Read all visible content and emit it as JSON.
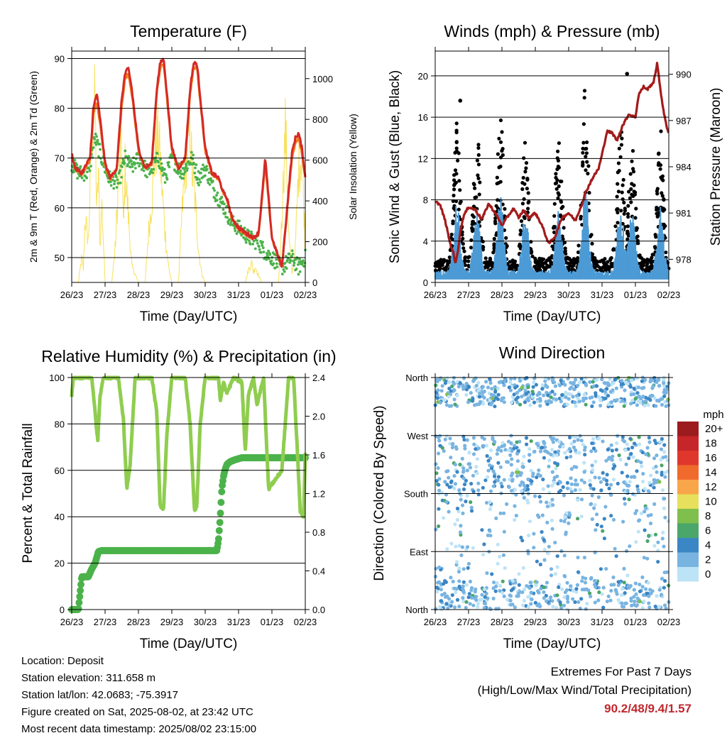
{
  "days": [
    "26/23",
    "27/23",
    "28/23",
    "29/23",
    "30/23",
    "31/23",
    "01/23",
    "02/23"
  ],
  "colors": {
    "t2m": "#d42a26",
    "t9m": "#f07d1f",
    "td": "#4bb24a",
    "solar": "#f8e05a",
    "sonic": "#4d9bd5",
    "gust": "#000000",
    "pressure": "#a31b1b",
    "rh": "#8fcd4f",
    "precip": "#4bb24a"
  },
  "charts": {
    "temperature": {
      "title": "Temperature (F)",
      "xlabel": "Time (Day/UTC)",
      "ylabel": "2m & 9m T (Red, Orange) & 2m Td (Green)",
      "y2label": "Solar Insolation (Yellow)"
    },
    "winds": {
      "title": "Winds (mph) & Pressure (mb)",
      "xlabel": "Time (Day/UTC)",
      "ylabel": "Sonic Wind & Gust (Blue, Black)",
      "y2label": "Station Pressure (Maroon)"
    },
    "rh": {
      "title": "Relative Humidity (%) & Precipitation (in)",
      "xlabel": "Time (Day/UTC)",
      "ylabel": "Percent & Total Rainfall"
    },
    "wdir": {
      "title": "Wind Direction",
      "xlabel": "Time (Day/UTC)",
      "ylabel": "Direction (Colored By Speed)",
      "legend_title": "mph"
    }
  },
  "chart_data": [
    {
      "type": "line",
      "title": "Temperature (F)",
      "xlabel": "Time (Day/UTC)",
      "ylabel": "2m & 9m T (Red, Orange) & 2m Td (Green)",
      "y2label": "Solar Insolation (Yellow)",
      "ylim": [
        45,
        91.5
      ],
      "y2lim": [
        0,
        1135
      ],
      "yticks": [
        50,
        60,
        70,
        80,
        90
      ],
      "y2ticks": [
        0,
        200,
        400,
        600,
        800,
        1000
      ],
      "xlim": [
        0,
        7
      ],
      "grid": true,
      "series": [
        {
          "x": [
            0,
            0.1,
            0.3,
            0.55,
            0.65,
            0.75,
            0.85,
            1.0,
            1.15,
            1.35,
            1.5,
            1.6,
            1.7,
            1.8,
            2.0,
            2.2,
            2.4,
            2.55,
            2.65,
            2.75,
            2.8,
            3.0,
            3.2,
            3.4,
            3.55,
            3.65,
            3.75,
            3.8,
            4.0,
            4.2,
            4.4,
            4.55,
            4.65,
            4.8,
            5.0,
            5.2,
            5.45,
            5.6,
            5.7,
            5.8,
            5.9,
            6.0,
            6.3,
            6.6,
            6.7,
            6.8,
            6.9,
            7.0
          ],
          "y": [
            71,
            68,
            67,
            70,
            80,
            83,
            78,
            69,
            66,
            68,
            82,
            87,
            88,
            84,
            72,
            68,
            69,
            84,
            89,
            90,
            87,
            72,
            68,
            70,
            84,
            89,
            89,
            86,
            72,
            67,
            66,
            63,
            62,
            58,
            56,
            55,
            54,
            55,
            62,
            70,
            62,
            54,
            48,
            71,
            74,
            75,
            72,
            66
          ]
        },
        {
          "x": [
            0,
            0.1,
            0.3,
            0.55,
            0.65,
            0.75,
            0.85,
            1.0,
            1.15,
            1.35,
            1.5,
            1.6,
            1.7,
            1.8,
            2.0,
            2.2,
            2.4,
            2.55,
            2.65,
            2.75,
            2.8,
            3.0,
            3.2,
            3.4,
            3.55,
            3.65,
            3.75,
            3.8,
            4.0,
            4.2,
            4.4,
            4.55,
            4.65,
            4.8,
            5.0,
            5.2,
            5.45,
            5.6,
            5.7,
            5.8,
            5.9,
            6.0,
            6.3,
            6.6,
            6.7,
            6.8,
            6.9,
            7.0
          ],
          "y": [
            70.5,
            67.8,
            66.8,
            69.5,
            79,
            81,
            77,
            68.5,
            65.8,
            67.8,
            80.5,
            86,
            87,
            83,
            71.5,
            67.8,
            68.8,
            83,
            88,
            89,
            86,
            71.5,
            67.8,
            69.8,
            83,
            88,
            88.5,
            85,
            71.5,
            66.8,
            65.8,
            62.8,
            61.8,
            57.8,
            55.8,
            54.8,
            53.8,
            54.8,
            61.5,
            69,
            61.5,
            53.8,
            48,
            70,
            73,
            74,
            71,
            66
          ]
        },
        {
          "x": [
            0,
            0.2,
            0.5,
            0.7,
            0.9,
            1.1,
            1.4,
            1.6,
            1.8,
            2.0,
            2.3,
            2.6,
            2.8,
            3.0,
            3.3,
            3.6,
            3.8,
            4.0,
            4.3,
            4.5,
            4.8,
            5.0,
            5.3,
            5.6,
            5.8,
            6.0,
            6.3,
            6.6,
            6.8,
            7.0
          ],
          "y": [
            69,
            67,
            67,
            74,
            70,
            66,
            65,
            70,
            68,
            70,
            67,
            70,
            66,
            70,
            67,
            70,
            66,
            68,
            63,
            61,
            57,
            56,
            54,
            53,
            51,
            50,
            48,
            50,
            48,
            50
          ]
        },
        {
          "x": [
            0.2,
            0.3,
            0.35,
            0.4,
            0.5,
            0.6,
            0.7,
            0.75,
            0.8,
            0.85,
            0.9,
            1.0,
            1.2,
            1.3,
            1.4,
            1.5,
            1.55,
            1.6,
            1.7,
            1.8,
            1.9,
            2.0,
            2.2,
            2.3,
            2.4,
            2.5,
            2.6,
            2.7,
            2.8,
            2.9,
            3.0,
            3.2,
            3.3,
            3.4,
            3.5,
            3.55,
            3.6,
            3.7,
            3.8,
            3.9,
            4.0,
            4.2,
            4.3,
            4.4,
            4.5,
            4.6,
            4.7,
            4.8,
            4.9,
            5.0,
            5.2,
            5.3,
            5.4,
            5.45,
            5.5,
            5.6,
            5.7,
            5.8,
            6.0,
            6.2,
            6.3,
            6.4,
            6.45,
            6.5,
            6.6,
            6.7,
            6.8,
            6.9,
            7.0
          ],
          "y": [
            0,
            150,
            80,
            400,
            250,
            900,
            1100,
            400,
            700,
            200,
            500,
            0,
            0,
            200,
            600,
            850,
            300,
            700,
            400,
            100,
            50,
            0,
            0,
            300,
            500,
            800,
            900,
            600,
            300,
            100,
            0,
            0,
            400,
            700,
            850,
            950,
            700,
            500,
            200,
            50,
            0,
            0,
            0,
            0,
            0,
            0,
            0,
            0,
            0,
            0,
            0,
            80,
            120,
            60,
            100,
            40,
            0,
            0,
            0,
            0,
            400,
            950,
            700,
            300,
            50,
            200,
            700,
            800,
            200
          ]
        }
      ]
    },
    {
      "type": "scatter",
      "title": "Winds (mph) & Pressure (mb)",
      "xlabel": "Time (Day/UTC)",
      "ylabel": "Sonic Wind & Gust (Blue, Black)",
      "y2label": "Station Pressure (Maroon)",
      "ylim": [
        0,
        22.4
      ],
      "y2lim": [
        976.5,
        991.5
      ],
      "yticks": [
        0,
        4,
        8,
        12,
        16,
        20
      ],
      "y2ticks": [
        978,
        981,
        984,
        987,
        990
      ],
      "xlim": [
        0,
        7
      ],
      "grid": true,
      "series": [
        {
          "x": [
            0,
            0.15,
            0.3,
            0.45,
            0.55,
            0.6,
            0.7,
            0.75,
            0.85,
            1.0,
            1.2,
            1.4,
            1.6,
            1.8,
            2.0,
            2.15,
            2.35,
            2.5,
            2.65,
            2.8,
            3.0,
            3.2,
            3.4,
            3.6,
            3.8,
            4.0,
            4.2,
            4.4,
            4.5,
            4.7,
            4.9,
            5.0,
            5.15,
            5.3,
            5.45,
            5.6,
            5.8,
            6.0,
            6.1,
            6.25,
            6.35,
            6.55,
            6.65,
            6.75,
            6.85,
            6.95,
            7.0
          ],
          "y": [
            981.8,
            981.5,
            980.5,
            979.0,
            978.4,
            977.7,
            978.8,
            979.8,
            980.8,
            981.4,
            981.2,
            980.6,
            981.6,
            981.0,
            980.2,
            980.7,
            981.3,
            980.7,
            981.2,
            980.7,
            981.0,
            980.2,
            979.0,
            979.5,
            980.7,
            981.0,
            980.5,
            981.6,
            982.3,
            983.2,
            983.9,
            984.8,
            986.3,
            986.2,
            985.7,
            986.6,
            987.4,
            987.2,
            988.7,
            989.2,
            989.0,
            989.5,
            990.7,
            989.0,
            987.5,
            986.5,
            986.2
          ]
        }
      ]
    },
    {
      "type": "line",
      "title": "Relative Humidity (%) & Precipitation (in)",
      "xlabel": "Time (Day/UTC)",
      "ylabel": "Percent & Total Rainfall",
      "ylim": [
        0,
        100
      ],
      "y2lim": [
        0,
        2.4
      ],
      "yticks": [
        0,
        20,
        40,
        60,
        80,
        100
      ],
      "y2ticks": [
        0.0,
        0.4,
        0.8,
        1.2,
        1.6,
        2.0,
        2.4
      ],
      "xlim": [
        0,
        7
      ],
      "grid": true,
      "series": [
        {
          "x": [
            0,
            0.05,
            0.6,
            0.7,
            0.78,
            0.85,
            0.95,
            1.4,
            1.55,
            1.65,
            1.75,
            1.9,
            2.4,
            2.55,
            2.65,
            2.75,
            2.85,
            3.0,
            3.4,
            3.55,
            3.68,
            3.75,
            3.85,
            4.0,
            4.4,
            4.45,
            4.55,
            4.65,
            4.85,
            5.1,
            5.2,
            5.3,
            5.45,
            5.55,
            5.75,
            5.85,
            5.9,
            6.0,
            6.3,
            6.5,
            6.65,
            6.75,
            6.85,
            6.95,
            7.0
          ],
          "y": [
            92,
            100,
            100,
            85,
            73,
            92,
            100,
            100,
            82,
            52,
            62,
            100,
            100,
            85,
            45,
            43,
            75,
            100,
            100,
            80,
            42,
            45,
            80,
            100,
            100,
            90,
            98,
            93,
            100,
            98,
            68,
            93,
            100,
            88,
            100,
            68,
            52,
            54,
            60,
            100,
            100,
            72,
            42,
            40,
            68
          ]
        },
        {
          "x": [
            0,
            0.2,
            0.3,
            0.4,
            0.5,
            0.6,
            0.7,
            0.8,
            0.9,
            1.0,
            4.35,
            4.4,
            4.45,
            4.5,
            4.55,
            4.6,
            4.65,
            4.75,
            4.9,
            5.1,
            7.0
          ],
          "y": [
            0,
            0,
            0.34,
            0.34,
            0.34,
            0.42,
            0.48,
            0.6,
            0.61,
            0.61,
            0.61,
            0.72,
            0.95,
            1.25,
            1.38,
            1.45,
            1.5,
            1.53,
            1.55,
            1.57,
            1.57
          ]
        }
      ]
    },
    {
      "type": "scatter",
      "title": "Wind Direction",
      "xlabel": "Time (Day/UTC)",
      "ylabel": "Direction (Colored By Speed)",
      "ylim": [
        0,
        360
      ],
      "yticks": [
        "North",
        "East",
        "South",
        "West",
        "North"
      ],
      "xlim": [
        0,
        7
      ],
      "legend_title": "mph",
      "legend_labels": [
        "20+",
        "18",
        "16",
        "14",
        "12",
        "10",
        "8",
        "6",
        "4",
        "2",
        "0"
      ],
      "legend_colors": [
        "#9b1b1e",
        "#c6252a",
        "#e0372d",
        "#f06a2c",
        "#f9a54a",
        "#e6e05c",
        "#7fbf4d",
        "#4aa669",
        "#3b86c4",
        "#79b4e1",
        "#bde3f6"
      ],
      "grid": true
    }
  ],
  "footer": {
    "location": "Location: Deposit",
    "elevation": "Station elevation: 311.658 m",
    "latlon": "Station lat/lon: 42.0683; -75.3917",
    "created": "Figure created on Sat, 2025-08-02, at 23:42 UTC",
    "recent": "Most recent data timestamp: 2025/08/02 23:15:00"
  },
  "extremes": {
    "line1": "Extremes For Past 7 Days",
    "line2": "(High/Low/Max Wind/Total Precipitation)",
    "value": "90.2/48/9.4/1.57"
  }
}
